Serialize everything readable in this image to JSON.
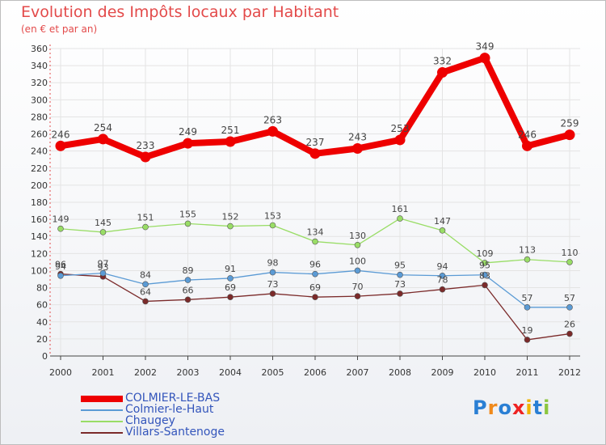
{
  "chart_data": {
    "type": "line",
    "title": "Evolution des Impôts locaux par Habitant",
    "subtitle": "(en € et par an)",
    "categories": [
      "2000",
      "2001",
      "2002",
      "2003",
      "2004",
      "2005",
      "2006",
      "2007",
      "2008",
      "2009",
      "2010",
      "2011",
      "2012"
    ],
    "ylim": [
      0,
      360
    ],
    "yticks": [
      0,
      20,
      40,
      60,
      80,
      100,
      120,
      140,
      160,
      180,
      200,
      220,
      240,
      260,
      280,
      300,
      320,
      340,
      360
    ],
    "grid": true,
    "legend_position": "bottom-left",
    "series": [
      {
        "name": "COLMIER-LE-BAS",
        "color": "#ee0000",
        "values": [
          246,
          254,
          233,
          249,
          251,
          263,
          237,
          243,
          253,
          332,
          349,
          246,
          259
        ]
      },
      {
        "name": "Colmier-le-Haut",
        "color": "#5b9bd5",
        "values": [
          94,
          97,
          84,
          89,
          91,
          98,
          96,
          100,
          95,
          94,
          95,
          57,
          57
        ]
      },
      {
        "name": "Chaugey",
        "color": "#99dd66",
        "values": [
          149,
          145,
          151,
          155,
          152,
          153,
          134,
          130,
          161,
          147,
          109,
          113,
          110
        ]
      },
      {
        "name": "Villars-Santenoge",
        "color": "#7b2a2a",
        "values": [
          96,
          93,
          64,
          66,
          69,
          73,
          69,
          70,
          73,
          78,
          83,
          19,
          26
        ]
      }
    ]
  },
  "logo": {
    "text": "Proxiti",
    "letter_colors": [
      "#2a7fd4",
      "#f08a1c",
      "#2a7fd4",
      "#ee2222",
      "#f0b400",
      "#2a7fd4",
      "#8cc63f"
    ]
  }
}
